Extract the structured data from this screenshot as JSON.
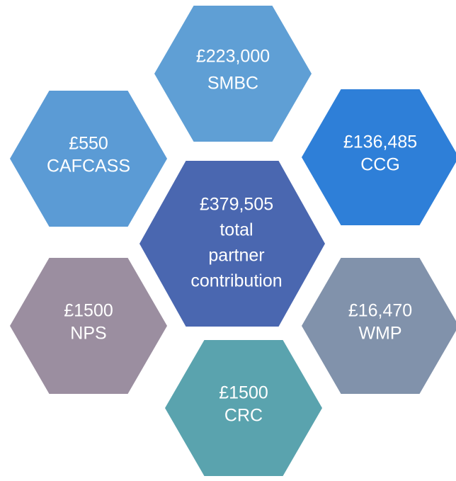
{
  "center": {
    "amount": "£379,505",
    "label_lines": [
      "total",
      "partner",
      "contribution"
    ]
  },
  "nodes": [
    {
      "amount": "£223,000",
      "label": "SMBC"
    },
    {
      "amount": "£550",
      "label": "CAFCASS"
    },
    {
      "amount": "£136,485",
      "label": "CCG"
    },
    {
      "amount": "£1500",
      "label": "NPS"
    },
    {
      "amount": "£16,470",
      "label": "WMP"
    },
    {
      "amount": "£1500",
      "label": "CRC"
    }
  ]
}
